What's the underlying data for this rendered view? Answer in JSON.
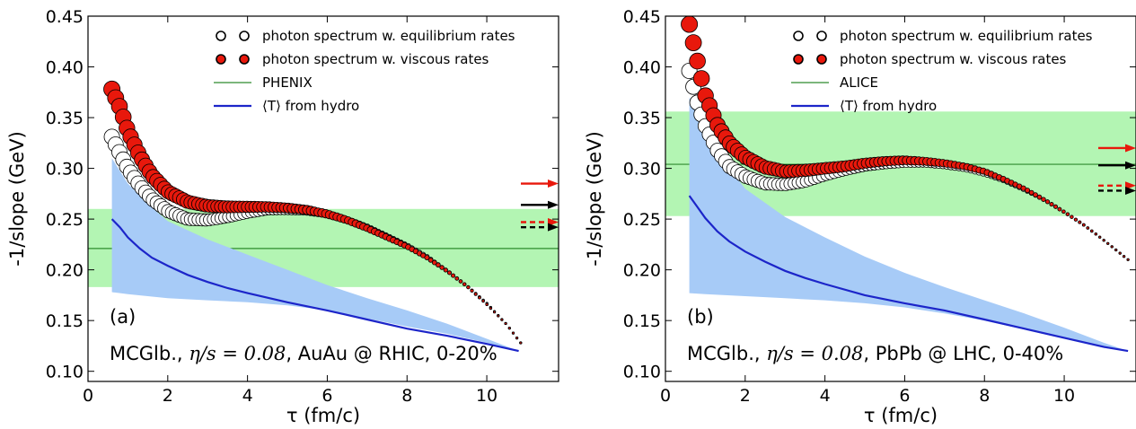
{
  "chart_data": [
    {
      "type": "scatter",
      "panel_label": "(a)",
      "annotation": {
        "prefix": "MCGlb., ",
        "math": "η/s = 0.08",
        "suffix": ", AuAu @ RHIC, 0-20%"
      },
      "xlabel": "τ (fm/c)",
      "ylabel": "-1/slope (GeV)",
      "xlim": [
        0,
        11.8
      ],
      "ylim": [
        0.09,
        0.45
      ],
      "xticks": [
        0,
        2,
        4,
        6,
        8,
        10
      ],
      "yticks": [
        0.1,
        0.15,
        0.2,
        0.25,
        0.3,
        0.35,
        0.4,
        0.45
      ],
      "xtick_labels": [
        "0",
        "2",
        "4",
        "6",
        "8",
        "10"
      ],
      "ytick_labels": [
        "0.10",
        "0.15",
        "0.20",
        "0.25",
        "0.30",
        "0.35",
        "0.40",
        "0.45"
      ],
      "legend_position": "top-right",
      "legend": [
        {
          "label": "photon spectrum w. equilibrium rates",
          "marker": "open-circle"
        },
        {
          "label": "photon spectrum w. viscous rates",
          "marker": "red-circle"
        },
        {
          "label": "PHENIX",
          "marker": "green-line"
        },
        {
          "label": "⟨T⟩ from hydro",
          "marker": "blue-line"
        }
      ],
      "series": [
        {
          "name": "photon spectrum w. equilibrium rates",
          "x_range": [
            0.6,
            10.85
          ],
          "x": [
            0.6,
            0.8,
            1.0,
            1.3,
            1.6,
            2.0,
            2.5,
            3.0,
            3.5,
            4.0,
            4.5,
            5.0,
            5.5,
            6.0,
            6.5,
            7.0,
            7.5,
            8.0,
            8.5,
            9.0,
            9.5,
            10.0,
            10.5,
            10.85
          ],
          "y": [
            0.331,
            0.315,
            0.3,
            0.283,
            0.27,
            0.258,
            0.25,
            0.249,
            0.252,
            0.256,
            0.259,
            0.259,
            0.258,
            0.255,
            0.249,
            0.242,
            0.233,
            0.224,
            0.213,
            0.199,
            0.184,
            0.167,
            0.146,
            0.128
          ]
        },
        {
          "name": "photon spectrum w. viscous rates",
          "x_range": [
            0.6,
            10.85
          ],
          "x": [
            0.6,
            0.8,
            1.0,
            1.3,
            1.6,
            2.0,
            2.5,
            3.0,
            3.5,
            4.0,
            4.5,
            5.0,
            5.5,
            6.0,
            6.5,
            7.0,
            7.5,
            8.0,
            8.5,
            9.0,
            9.5,
            10.0,
            10.5,
            10.85
          ],
          "y": [
            0.378,
            0.36,
            0.337,
            0.312,
            0.293,
            0.277,
            0.267,
            0.263,
            0.262,
            0.262,
            0.262,
            0.261,
            0.259,
            0.255,
            0.249,
            0.241,
            0.232,
            0.223,
            0.212,
            0.199,
            0.184,
            0.166,
            0.146,
            0.128
          ]
        },
        {
          "name": "⟨T⟩ from hydro",
          "x": [
            0.6,
            0.8,
            1.0,
            1.3,
            1.6,
            2.0,
            2.5,
            3.0,
            3.5,
            4.0,
            5.0,
            6.0,
            7.0,
            8.0,
            9.0,
            10.0,
            10.8
          ],
          "y": [
            0.25,
            0.242,
            0.232,
            0.221,
            0.212,
            0.204,
            0.195,
            0.188,
            0.182,
            0.177,
            0.168,
            0.16,
            0.151,
            0.142,
            0.135,
            0.127,
            0.12
          ]
        },
        {
          "name": "⟨T⟩ band",
          "x": [
            0.6,
            1.0,
            1.5,
            2.0,
            3.0,
            4.0,
            5.0,
            6.0,
            7.0,
            8.0,
            9.0,
            10.0,
            10.8
          ],
          "upper": [
            0.31,
            0.285,
            0.265,
            0.248,
            0.23,
            0.215,
            0.2,
            0.185,
            0.172,
            0.16,
            0.147,
            0.132,
            0.12
          ],
          "lower": [
            0.178,
            0.176,
            0.174,
            0.172,
            0.17,
            0.168,
            0.165,
            0.16,
            0.152,
            0.144,
            0.137,
            0.128,
            0.12
          ]
        }
      ],
      "experiment": {
        "name": "PHENIX",
        "central": 0.221,
        "low": 0.183,
        "high": 0.26
      },
      "arrows": [
        {
          "y": 0.285,
          "color": "#e8180c",
          "style": "solid"
        },
        {
          "y": 0.264,
          "color": "#000000",
          "style": "solid"
        },
        {
          "y": 0.247,
          "color": "#e8180c",
          "style": "dashed"
        },
        {
          "y": 0.242,
          "color": "#000000",
          "style": "dashed"
        }
      ],
      "colors": {
        "band": "#a7cbf7",
        "hydro_line": "#1c25c9",
        "experiment_band": "#b3f5b3",
        "experiment_line": "#2e8b2e",
        "viscous": "#e8180c"
      }
    },
    {
      "type": "scatter",
      "panel_label": "(b)",
      "annotation": {
        "prefix": "MCGlb., ",
        "math": "η/s = 0.08",
        "suffix": ", PbPb @ LHC, 0-40%"
      },
      "xlabel": "τ (fm/c)",
      "ylabel": "-1/slope (GeV)",
      "xlim": [
        0,
        11.8
      ],
      "ylim": [
        0.09,
        0.45
      ],
      "xticks": [
        0,
        2,
        4,
        6,
        8,
        10
      ],
      "yticks": [
        0.1,
        0.15,
        0.2,
        0.25,
        0.3,
        0.35,
        0.4,
        0.45
      ],
      "xtick_labels": [
        "0",
        "2",
        "4",
        "6",
        "8",
        "10"
      ],
      "ytick_labels": [
        "0.10",
        "0.15",
        "0.20",
        "0.25",
        "0.30",
        "0.35",
        "0.40",
        "0.45"
      ],
      "legend_position": "top-right",
      "legend": [
        {
          "label": "photon spectrum w. equilibrium rates",
          "marker": "open-circle"
        },
        {
          "label": "photon spectrum w. viscous rates",
          "marker": "red-circle"
        },
        {
          "label": "ALICE",
          "marker": "green-line"
        },
        {
          "label": "⟨T⟩ from hydro",
          "marker": "blue-line"
        }
      ],
      "series": [
        {
          "name": "photon spectrum w. equilibrium rates",
          "x_range": [
            0.6,
            11.6
          ],
          "x": [
            0.6,
            0.8,
            1.0,
            1.3,
            1.6,
            2.0,
            2.5,
            3.0,
            3.5,
            4.0,
            4.5,
            5.0,
            5.5,
            6.0,
            6.5,
            7.0,
            7.5,
            8.0,
            8.5,
            9.0,
            9.5,
            10.0,
            10.5,
            11.0,
            11.6
          ],
          "y": [
            0.396,
            0.365,
            0.342,
            0.318,
            0.302,
            0.292,
            0.285,
            0.284,
            0.287,
            0.293,
            0.298,
            0.302,
            0.304,
            0.305,
            0.305,
            0.303,
            0.3,
            0.295,
            0.288,
            0.279,
            0.269,
            0.257,
            0.244,
            0.229,
            0.21
          ]
        },
        {
          "name": "photon spectrum w. viscous rates",
          "x_range": [
            0.6,
            11.6
          ],
          "x": [
            0.6,
            0.8,
            1.0,
            1.3,
            1.6,
            2.0,
            2.5,
            3.0,
            3.5,
            4.0,
            4.5,
            5.0,
            5.5,
            6.0,
            6.5,
            7.0,
            7.5,
            8.0,
            8.5,
            9.0,
            9.5,
            10.0,
            10.5,
            11.0,
            11.6
          ],
          "y": [
            0.442,
            0.406,
            0.372,
            0.343,
            0.325,
            0.311,
            0.301,
            0.297,
            0.298,
            0.3,
            0.302,
            0.305,
            0.307,
            0.308,
            0.307,
            0.305,
            0.302,
            0.297,
            0.289,
            0.28,
            0.269,
            0.257,
            0.244,
            0.229,
            0.21
          ]
        },
        {
          "name": "⟨T⟩ from hydro",
          "x": [
            0.6,
            0.8,
            1.0,
            1.3,
            1.6,
            2.0,
            2.5,
            3.0,
            3.5,
            4.0,
            5.0,
            6.0,
            7.0,
            8.0,
            9.0,
            10.0,
            11.0,
            11.6
          ],
          "y": [
            0.273,
            0.262,
            0.251,
            0.238,
            0.228,
            0.218,
            0.208,
            0.199,
            0.192,
            0.186,
            0.175,
            0.167,
            0.16,
            0.151,
            0.142,
            0.133,
            0.124,
            0.12
          ]
        },
        {
          "name": "⟨T⟩ band",
          "x": [
            0.6,
            1.0,
            1.5,
            2.0,
            3.0,
            4.0,
            5.0,
            6.0,
            7.0,
            8.0,
            9.0,
            10.0,
            11.0,
            11.6
          ],
          "upper": [
            0.37,
            0.335,
            0.305,
            0.28,
            0.252,
            0.232,
            0.213,
            0.197,
            0.183,
            0.17,
            0.157,
            0.143,
            0.128,
            0.12
          ],
          "lower": [
            0.177,
            0.176,
            0.175,
            0.174,
            0.172,
            0.17,
            0.167,
            0.163,
            0.157,
            0.15,
            0.141,
            0.132,
            0.123,
            0.12
          ]
        }
      ],
      "experiment": {
        "name": "ALICE",
        "central": 0.304,
        "low": 0.253,
        "high": 0.356
      },
      "arrows": [
        {
          "y": 0.32,
          "color": "#e8180c",
          "style": "solid"
        },
        {
          "y": 0.303,
          "color": "#000000",
          "style": "solid"
        },
        {
          "y": 0.283,
          "color": "#e8180c",
          "style": "dashed"
        },
        {
          "y": 0.278,
          "color": "#000000",
          "style": "dashed"
        }
      ],
      "colors": {
        "band": "#a7cbf7",
        "hydro_line": "#1c25c9",
        "experiment_band": "#b3f5b3",
        "experiment_line": "#2e8b2e",
        "viscous": "#e8180c"
      }
    }
  ]
}
